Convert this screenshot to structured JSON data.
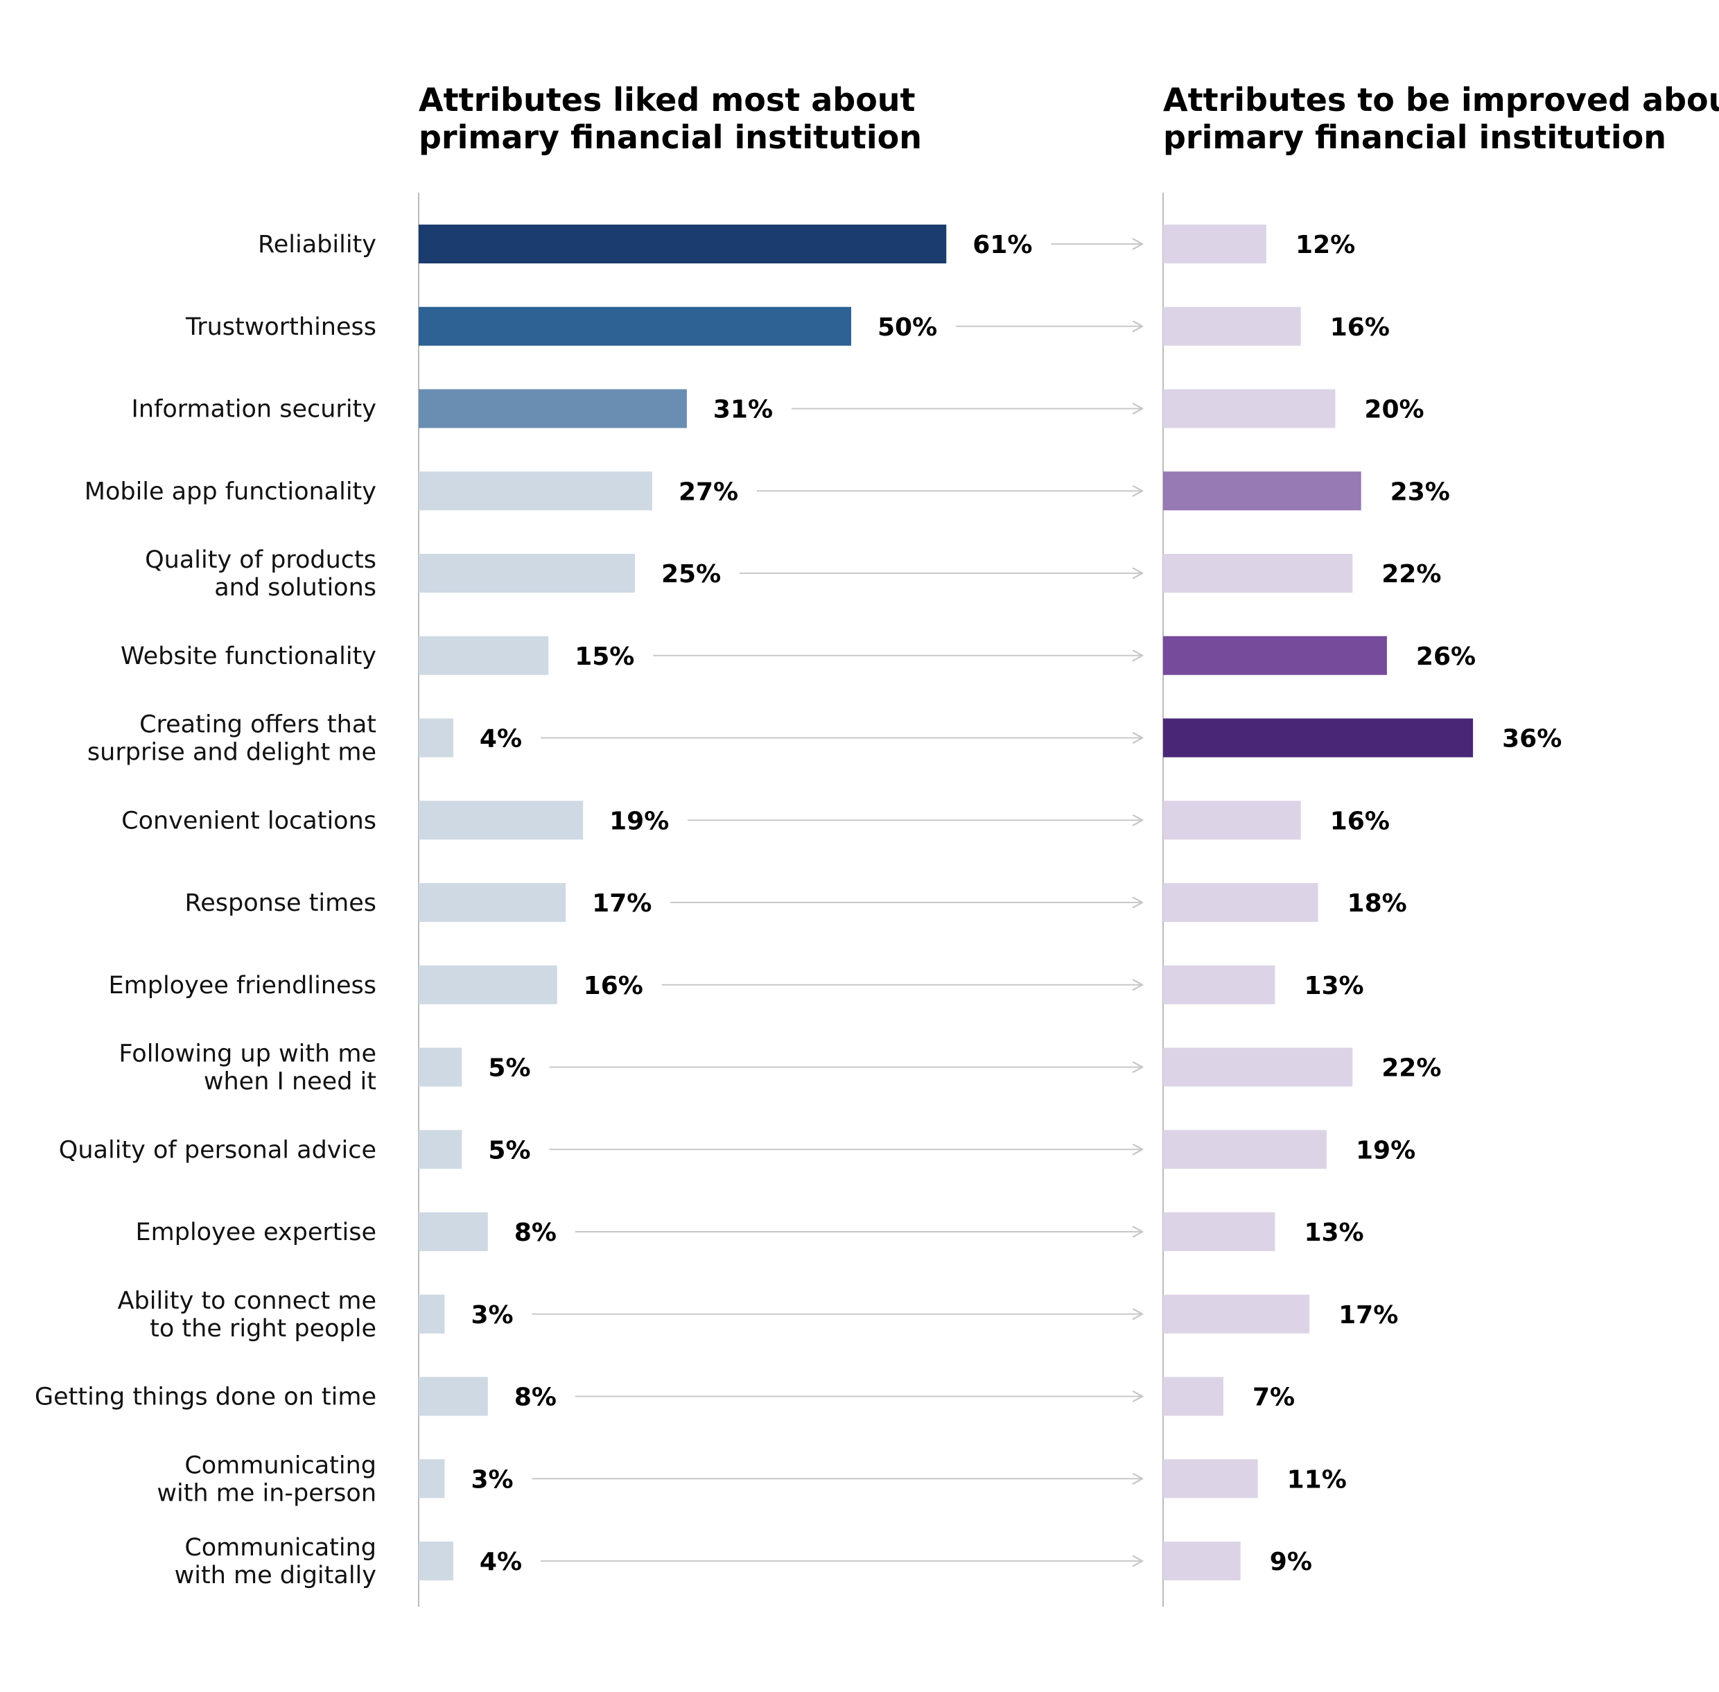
{
  "chart_data": {
    "type": "bar",
    "orientation": "horizontal",
    "categories": [
      "Reliability",
      "Trustworthiness",
      "Information security",
      "Mobile app functionality",
      "Quality of products\nand solutions",
      "Website functionality",
      "Creating offers that\nsurprise and delight me",
      "Convenient locations",
      "Response times",
      "Employee friendliness",
      "Following up with me\nwhen I need it",
      "Quality of personal advice",
      "Employee expertise",
      "Ability to connect me\nto the right people",
      "Getting things done on time",
      "Communicating\nwith me in-person",
      "Communicating\nwith me digitally"
    ],
    "series": [
      {
        "name": "Attributes liked most about primary financial institution",
        "title_lines": [
          "Attributes liked most about",
          "primary financial institution"
        ],
        "values": [
          61,
          50,
          31,
          27,
          25,
          15,
          4,
          19,
          17,
          16,
          5,
          5,
          8,
          3,
          8,
          3,
          4
        ],
        "labels": [
          "61%",
          "50%",
          "31%",
          "27%",
          "25%",
          "15%",
          "4%",
          "19%",
          "17%",
          "16%",
          "5%",
          "5%",
          "8%",
          "3%",
          "8%",
          "3%",
          "4%"
        ],
        "colors": [
          "#1b3c6e",
          "#2e6294",
          "#6a8db2",
          "#cfd9e4",
          "#cfd9e4",
          "#cfd9e4",
          "#cfd9e4",
          "#cfd9e4",
          "#cfd9e4",
          "#cfd9e4",
          "#cfd9e4",
          "#cfd9e4",
          "#cfd9e4",
          "#cfd9e4",
          "#cfd9e4",
          "#cfd9e4",
          "#cfd9e4"
        ]
      },
      {
        "name": "Attributes to be improved about primary financial institution",
        "title_lines": [
          "Attributes to be improved about",
          "primary financial institution"
        ],
        "values": [
          12,
          16,
          20,
          23,
          22,
          26,
          36,
          16,
          18,
          13,
          22,
          19,
          13,
          17,
          7,
          11,
          9
        ],
        "labels": [
          "12%",
          "16%",
          "20%",
          "23%",
          "22%",
          "26%",
          "36%",
          "16%",
          "18%",
          "13%",
          "22%",
          "19%",
          "13%",
          "17%",
          "7%",
          "11%",
          "9%"
        ],
        "colors": [
          "#dcd4e6",
          "#dcd4e6",
          "#dcd4e6",
          "#9779b4",
          "#dcd4e6",
          "#774b9b",
          "#4a2677",
          "#dcd4e6",
          "#dcd4e6",
          "#dcd4e6",
          "#dcd4e6",
          "#dcd4e6",
          "#dcd4e6",
          "#dcd4e6",
          "#dcd4e6",
          "#dcd4e6",
          "#dcd4e6"
        ]
      }
    ],
    "xlim": [
      0,
      100
    ],
    "grid": false,
    "legend": "none",
    "connector_color": "#c8c8c8",
    "axis_color": "#bbbbbb"
  }
}
